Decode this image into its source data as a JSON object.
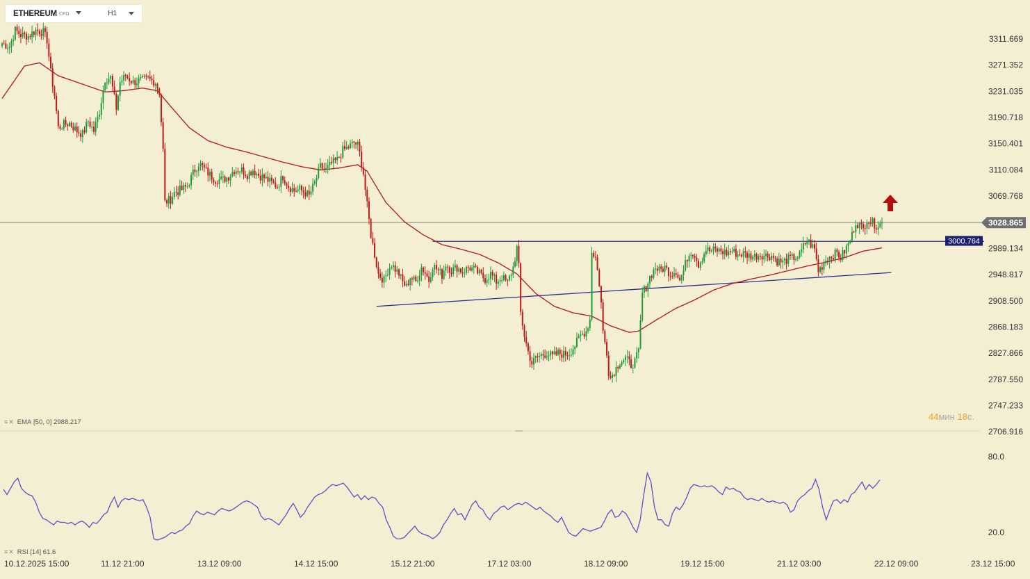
{
  "symbol": {
    "name": "ETHEREUM",
    "type": "CFD",
    "timeframe": "H1"
  },
  "colors": {
    "background": "#f4efd3",
    "bull": "#1e9c3a",
    "bear": "#c01818",
    "ema": "#b42323",
    "rsi": "#5b4fc4",
    "trendline": "#2b2f8c",
    "price_line": "#8a8a8a",
    "current_price_badge": "#6e6e6e",
    "level_badge": "#1d2072",
    "signal_arrow": "#b30d0d"
  },
  "indicators": {
    "ema": {
      "label": "EMA",
      "params": "[50, 0]",
      "value": "2988.217"
    },
    "rsi": {
      "label": "RSI",
      "params": "[14]",
      "value": "61.6"
    }
  },
  "timer": {
    "minutes": "44",
    "min_unit": "мин",
    "seconds": "18",
    "sec_unit": "с."
  },
  "chart_data": {
    "type": "candlestick",
    "instrument": "ETHEREUM",
    "timeframe": "H1",
    "price_axis": {
      "ylim": [
        2690,
        3340
      ],
      "ticks": [
        "3311.669",
        "3271.352",
        "3231.035",
        "3190.718",
        "3150.401",
        "3110.084",
        "3069.768",
        "3028.865",
        "2989.134",
        "2948.817",
        "2908.500",
        "2868.183",
        "2827.866",
        "2787.550",
        "2747.233",
        "2706.916"
      ]
    },
    "current_price": "3028.865",
    "horizontal_level": "3000.764",
    "time_axis": {
      "ticks": [
        "10.12.2025  15:00",
        "11.12  21:00",
        "13.12  09:00",
        "14.12  15:00",
        "15.12  21:00",
        "17.12  03:00",
        "18.12  09:00",
        "19.12  15:00",
        "21.12  03:00",
        "22.12  09:00",
        "23.12  15:00"
      ]
    },
    "price_path": [
      [
        0,
        3305
      ],
      [
        4,
        3300
      ],
      [
        7,
        3325
      ],
      [
        10,
        3318
      ],
      [
        14,
        3316
      ],
      [
        18,
        3325
      ],
      [
        22,
        3322
      ],
      [
        24,
        3310
      ],
      [
        26,
        3260
      ],
      [
        28,
        3225
      ],
      [
        30,
        3175
      ],
      [
        33,
        3180
      ],
      [
        36,
        3182
      ],
      [
        40,
        3170
      ],
      [
        43,
        3165
      ],
      [
        46,
        3185
      ],
      [
        49,
        3170
      ],
      [
        52,
        3200
      ],
      [
        55,
        3250
      ],
      [
        58,
        3252
      ],
      [
        61,
        3205
      ],
      [
        63,
        3245
      ],
      [
        66,
        3255
      ],
      [
        70,
        3245
      ],
      [
        74,
        3248
      ],
      [
        78,
        3250
      ],
      [
        82,
        3245
      ],
      [
        84,
        3230
      ],
      [
        86,
        3140
      ],
      [
        87,
        3060
      ],
      [
        90,
        3065
      ],
      [
        92,
        3075
      ],
      [
        96,
        3080
      ],
      [
        99,
        3085
      ],
      [
        102,
        3105
      ],
      [
        105,
        3120
      ],
      [
        107,
        3115
      ],
      [
        110,
        3105
      ],
      [
        114,
        3095
      ],
      [
        118,
        3095
      ],
      [
        121,
        3100
      ],
      [
        124,
        3110
      ],
      [
        128,
        3110
      ],
      [
        131,
        3103
      ],
      [
        134,
        3110
      ],
      [
        137,
        3102
      ],
      [
        140,
        3098
      ],
      [
        144,
        3090
      ],
      [
        147,
        3085
      ],
      [
        150,
        3100
      ],
      [
        153,
        3085
      ],
      [
        156,
        3078
      ],
      [
        159,
        3080
      ],
      [
        162,
        3075
      ],
      [
        164,
        3070
      ],
      [
        167,
        3090
      ],
      [
        170,
        3115
      ],
      [
        173,
        3110
      ],
      [
        176,
        3120
      ],
      [
        179,
        3125
      ],
      [
        182,
        3140
      ],
      [
        185,
        3145
      ],
      [
        188,
        3152
      ],
      [
        190,
        3148
      ],
      [
        191,
        3135
      ],
      [
        193,
        3105
      ],
      [
        195,
        3055
      ],
      [
        197,
        3010
      ],
      [
        199,
        2980
      ],
      [
        201,
        2950
      ],
      [
        204,
        2940
      ],
      [
        206,
        2955
      ],
      [
        208,
        2965
      ],
      [
        210,
        2957
      ],
      [
        212,
        2950
      ],
      [
        214,
        2937
      ],
      [
        216,
        2930
      ],
      [
        218,
        2945
      ],
      [
        221,
        2938
      ],
      [
        224,
        2960
      ],
      [
        226,
        2952
      ],
      [
        228,
        2940
      ],
      [
        230,
        2963
      ],
      [
        233,
        2955
      ],
      [
        235,
        2948
      ],
      [
        237,
        2965
      ],
      [
        240,
        2955
      ],
      [
        243,
        2960
      ],
      [
        246,
        2953
      ],
      [
        249,
        2960
      ],
      [
        252,
        2957
      ],
      [
        255,
        2950
      ],
      [
        258,
        2942
      ],
      [
        261,
        2950
      ],
      [
        264,
        2938
      ],
      [
        267,
        2945
      ],
      [
        270,
        2936
      ],
      [
        273,
        2960
      ],
      [
        275,
        2990
      ],
      [
        276,
        2960
      ],
      [
        277,
        2890
      ],
      [
        279,
        2855
      ],
      [
        281,
        2830
      ],
      [
        283,
        2812
      ],
      [
        285,
        2820
      ],
      [
        288,
        2825
      ],
      [
        291,
        2828
      ],
      [
        294,
        2823
      ],
      [
        297,
        2828
      ],
      [
        300,
        2826
      ],
      [
        303,
        2828
      ],
      [
        306,
        2840
      ],
      [
        309,
        2855
      ],
      [
        312,
        2862
      ],
      [
        314,
        2880
      ],
      [
        315,
        2985
      ],
      [
        317,
        2975
      ],
      [
        319,
        2935
      ],
      [
        320,
        2905
      ],
      [
        321,
        2860
      ],
      [
        323,
        2830
      ],
      [
        324,
        2800
      ],
      [
        325,
        2790
      ],
      [
        327,
        2800
      ],
      [
        330,
        2815
      ],
      [
        333,
        2820
      ],
      [
        336,
        2810
      ],
      [
        338,
        2815
      ],
      [
        340,
        2830
      ],
      [
        342,
        2920
      ],
      [
        344,
        2930
      ],
      [
        346,
        2945
      ],
      [
        349,
        2960
      ],
      [
        351,
        2955
      ],
      [
        354,
        2960
      ],
      [
        357,
        2950
      ],
      [
        360,
        2955
      ],
      [
        362,
        2940
      ],
      [
        364,
        2955
      ],
      [
        366,
        2975
      ],
      [
        368,
        2985
      ],
      [
        370,
        2980
      ],
      [
        372,
        2965
      ],
      [
        374,
        2975
      ],
      [
        376,
        2988
      ],
      [
        378,
        2985
      ],
      [
        381,
        2987
      ],
      [
        384,
        2985
      ],
      [
        387,
        2982
      ],
      [
        390,
        2985
      ],
      [
        393,
        2980
      ],
      [
        396,
        2981
      ],
      [
        399,
        2978
      ],
      [
        402,
        2977
      ],
      [
        405,
        2980
      ],
      [
        408,
        2978
      ],
      [
        411,
        2978
      ],
      [
        414,
        2970
      ],
      [
        417,
        2968
      ],
      [
        420,
        2973
      ],
      [
        423,
        2975
      ],
      [
        426,
        2978
      ],
      [
        428,
        2992
      ],
      [
        430,
        3002
      ],
      [
        432,
        2995
      ],
      [
        434,
        2988
      ],
      [
        436,
        2955
      ],
      [
        438,
        2962
      ],
      [
        440,
        2972
      ],
      [
        443,
        2978
      ],
      [
        446,
        2982
      ],
      [
        448,
        2975
      ],
      [
        450,
        2985
      ],
      [
        452,
        2995
      ],
      [
        454,
        3010
      ],
      [
        456,
        3030
      ],
      [
        458,
        3025
      ],
      [
        460,
        3018
      ],
      [
        462,
        3035
      ],
      [
        464,
        3030
      ],
      [
        467,
        3025
      ],
      [
        470,
        3028
      ]
    ],
    "ema_path": [
      [
        0,
        3220
      ],
      [
        12,
        3270
      ],
      [
        20,
        3275
      ],
      [
        30,
        3255
      ],
      [
        45,
        3240
      ],
      [
        55,
        3230
      ],
      [
        65,
        3232
      ],
      [
        75,
        3236
      ],
      [
        83,
        3232
      ],
      [
        90,
        3208
      ],
      [
        100,
        3175
      ],
      [
        110,
        3155
      ],
      [
        120,
        3145
      ],
      [
        130,
        3138
      ],
      [
        140,
        3130
      ],
      [
        150,
        3122
      ],
      [
        160,
        3115
      ],
      [
        170,
        3110
      ],
      [
        180,
        3113
      ],
      [
        190,
        3118
      ],
      [
        195,
        3108
      ],
      [
        205,
        3060
      ],
      [
        215,
        3030
      ],
      [
        225,
        3010
      ],
      [
        235,
        2995
      ],
      [
        245,
        2988
      ],
      [
        255,
        2980
      ],
      [
        265,
        2967
      ],
      [
        275,
        2950
      ],
      [
        285,
        2920
      ],
      [
        295,
        2900
      ],
      [
        305,
        2890
      ],
      [
        315,
        2885
      ],
      [
        325,
        2870
      ],
      [
        335,
        2860
      ],
      [
        340,
        2862
      ],
      [
        350,
        2880
      ],
      [
        360,
        2897
      ],
      [
        370,
        2910
      ],
      [
        380,
        2925
      ],
      [
        390,
        2935
      ],
      [
        400,
        2942
      ],
      [
        410,
        2948
      ],
      [
        420,
        2955
      ],
      [
        430,
        2962
      ],
      [
        440,
        2968
      ],
      [
        450,
        2975
      ],
      [
        460,
        2985
      ],
      [
        470,
        2990
      ]
    ],
    "trendlines": [
      {
        "name": "support",
        "from": [
          200,
          2900
        ],
        "to": [
          475,
          2952
        ]
      },
      {
        "name": "resistance",
        "from": [
          230,
          3000
        ],
        "to": [
          470,
          3000
        ]
      }
    ],
    "rsi": {
      "ylim": [
        10,
        90
      ],
      "ticks": [
        "80.0",
        "20.0"
      ],
      "values": [
        54,
        50,
        55,
        60,
        63,
        55,
        52,
        50,
        49,
        44,
        36,
        31,
        30,
        28,
        26,
        29,
        28,
        28,
        27,
        28,
        26,
        28,
        29,
        27,
        24,
        28,
        27,
        30,
        34,
        36,
        43,
        48,
        40,
        45,
        47,
        46,
        47,
        46,
        45,
        46,
        40,
        32,
        15,
        14,
        15,
        16,
        18,
        20,
        19,
        21,
        22,
        25,
        27,
        33,
        37,
        35,
        34,
        36,
        35,
        34,
        37,
        39,
        38,
        37,
        38,
        40,
        42,
        44,
        45,
        44,
        42,
        40,
        33,
        30,
        31,
        30,
        28,
        26,
        30,
        34,
        39,
        43,
        38,
        32,
        35,
        40,
        44,
        48,
        50,
        51,
        53,
        56,
        58,
        57,
        58,
        59,
        56,
        52,
        48,
        50,
        46,
        49,
        46,
        48,
        47,
        43,
        40,
        30,
        24,
        17,
        15,
        15,
        16,
        19,
        22,
        25,
        21,
        19,
        18,
        17,
        15,
        17,
        20,
        26,
        30,
        35,
        39,
        34,
        35,
        30,
        36,
        42,
        45,
        40,
        38,
        33,
        30,
        35,
        37,
        40,
        41,
        38,
        40,
        42,
        43,
        42,
        44,
        42,
        40,
        38,
        40,
        37,
        35,
        33,
        30,
        28,
        32,
        26,
        20,
        18,
        17,
        20,
        23,
        22,
        21,
        22,
        23,
        24,
        29,
        35,
        38,
        32,
        33,
        37,
        35,
        30,
        24,
        20,
        30,
        50,
        67,
        60,
        40,
        30,
        30,
        26,
        25,
        35,
        40,
        38,
        42,
        48,
        55,
        58,
        57,
        56,
        57,
        56,
        57,
        55,
        52,
        50,
        56,
        54,
        55,
        53,
        52,
        48,
        46,
        47,
        46,
        45,
        47,
        45,
        44,
        45,
        44,
        43,
        44,
        42,
        36,
        38,
        45,
        48,
        50,
        53,
        55,
        62,
        54,
        40,
        30,
        38,
        45,
        46,
        43,
        46,
        44,
        50,
        52,
        56,
        60,
        54,
        58,
        55,
        58,
        61.6
      ]
    }
  }
}
